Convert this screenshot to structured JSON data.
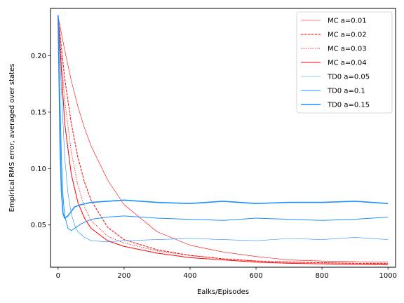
{
  "chart_data": {
    "type": "line",
    "title": "",
    "xlabel": "Ealks/Episodes",
    "ylabel": "Empirical RMS error, averaged over states",
    "xlim": [
      -23,
      1023
    ],
    "ylim": [
      0.0125,
      0.242
    ],
    "xticks": [
      0,
      200,
      400,
      600,
      800,
      1000
    ],
    "xtick_labels": [
      "0",
      "200",
      "400",
      "600",
      "800",
      "1000"
    ],
    "yticks": [
      0.05,
      0.1,
      0.15,
      0.2
    ],
    "ytick_labels": [
      "0.05",
      "0.10",
      "0.15",
      "0.20"
    ],
    "grid": false,
    "legend_position": "upper right",
    "series": [
      {
        "name": "MC a=0.01",
        "color": "#ff0000",
        "style": "solid",
        "width": "thin",
        "x": [
          0,
          20,
          40,
          60,
          80,
          100,
          150,
          200,
          300,
          400,
          500,
          600,
          700,
          800,
          900,
          1000
        ],
        "y": [
          0.235,
          0.205,
          0.178,
          0.155,
          0.136,
          0.12,
          0.09,
          0.068,
          0.044,
          0.032,
          0.026,
          0.022,
          0.019,
          0.018,
          0.0175,
          0.017
        ]
      },
      {
        "name": "MC a=0.02",
        "color": "#ff0000",
        "style": "dashed",
        "width": "normal",
        "x": [
          0,
          20,
          40,
          60,
          80,
          100,
          150,
          200,
          300,
          400,
          500,
          600,
          700,
          800,
          900,
          1000
        ],
        "y": [
          0.235,
          0.18,
          0.14,
          0.11,
          0.088,
          0.072,
          0.048,
          0.037,
          0.028,
          0.023,
          0.02,
          0.018,
          0.017,
          0.0165,
          0.016,
          0.016
        ]
      },
      {
        "name": "MC a=0.03",
        "color": "#ff0000",
        "style": "dotted",
        "width": "normal",
        "x": [
          0,
          20,
          40,
          60,
          80,
          100,
          150,
          200,
          300,
          400,
          500,
          600,
          700,
          800,
          900,
          1000
        ],
        "y": [
          0.235,
          0.16,
          0.115,
          0.085,
          0.066,
          0.054,
          0.04,
          0.034,
          0.027,
          0.023,
          0.02,
          0.018,
          0.017,
          0.0165,
          0.016,
          0.0155
        ]
      },
      {
        "name": "MC a=0.04",
        "color": "#ff0000",
        "style": "solid",
        "width": "normal",
        "x": [
          0,
          20,
          40,
          60,
          80,
          100,
          150,
          200,
          300,
          400,
          500,
          600,
          700,
          800,
          900,
          1000
        ],
        "y": [
          0.235,
          0.14,
          0.095,
          0.07,
          0.056,
          0.047,
          0.036,
          0.031,
          0.025,
          0.021,
          0.019,
          0.017,
          0.016,
          0.0155,
          0.015,
          0.0148
        ]
      },
      {
        "name": "TD0 a=0.05",
        "color": "#1e90ff",
        "style": "solid",
        "width": "thin",
        "x": [
          0,
          10,
          20,
          30,
          40,
          50,
          60,
          80,
          100,
          150,
          200,
          300,
          400,
          500,
          600,
          700,
          800,
          900,
          1000
        ],
        "y": [
          0.236,
          0.17,
          0.11,
          0.078,
          0.06,
          0.05,
          0.044,
          0.039,
          0.036,
          0.035,
          0.036,
          0.037,
          0.038,
          0.037,
          0.036,
          0.038,
          0.037,
          0.039,
          0.037
        ]
      },
      {
        "name": "TD0 a=0.1",
        "color": "#1e90ff",
        "style": "solid",
        "width": "normal",
        "x": [
          0,
          5,
          10,
          15,
          20,
          30,
          40,
          50,
          70,
          100,
          150,
          200,
          300,
          400,
          500,
          600,
          700,
          800,
          900,
          1000
        ],
        "y": [
          0.236,
          0.17,
          0.11,
          0.075,
          0.058,
          0.047,
          0.045,
          0.047,
          0.051,
          0.055,
          0.057,
          0.058,
          0.056,
          0.055,
          0.054,
          0.056,
          0.055,
          0.054,
          0.055,
          0.057
        ]
      },
      {
        "name": "TD0 a=0.15",
        "color": "#1e90ff",
        "style": "solid",
        "width": "thick",
        "x": [
          0,
          3,
          6,
          10,
          15,
          20,
          30,
          40,
          50,
          70,
          100,
          150,
          200,
          300,
          400,
          500,
          600,
          700,
          800,
          900,
          1000
        ],
        "y": [
          0.236,
          0.18,
          0.12,
          0.08,
          0.06,
          0.056,
          0.058,
          0.062,
          0.066,
          0.068,
          0.07,
          0.071,
          0.072,
          0.07,
          0.069,
          0.071,
          0.069,
          0.07,
          0.07,
          0.071,
          0.069
        ]
      }
    ]
  }
}
